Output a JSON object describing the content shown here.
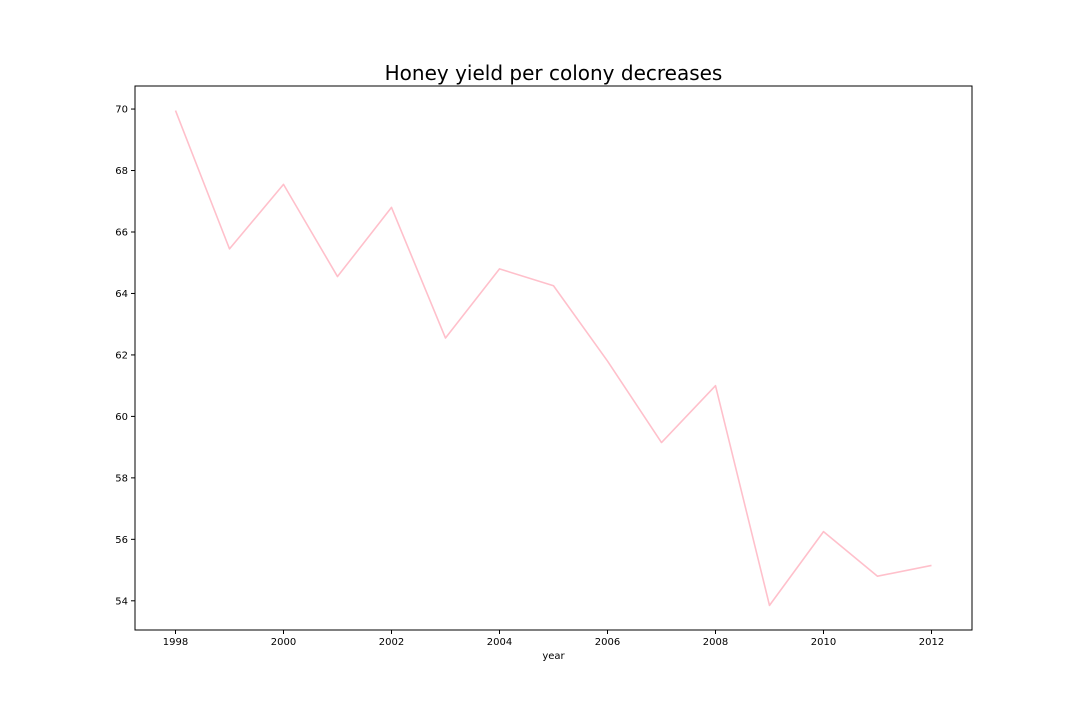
{
  "chart_data": {
    "type": "line",
    "title": "Honey yield per colony decreases",
    "xlabel": "year",
    "ylabel": "",
    "x": [
      1998,
      1999,
      2000,
      2001,
      2002,
      2003,
      2004,
      2005,
      2006,
      2007,
      2008,
      2009,
      2010,
      2011,
      2012
    ],
    "series": [
      {
        "values": [
          69.95,
          65.45,
          67.55,
          64.55,
          66.8,
          62.55,
          64.8,
          64.25,
          61.8,
          59.15,
          61.0,
          53.85,
          56.25,
          54.8,
          55.15
        ],
        "color": "#ffc0cb"
      }
    ],
    "xlim": [
      1997.25,
      2012.75
    ],
    "ylim": [
      53.05,
      70.75
    ],
    "xticks": [
      "1998",
      "2000",
      "2002",
      "2004",
      "2006",
      "2008",
      "2010",
      "2012"
    ],
    "yticks": [
      "54",
      "56",
      "58",
      "60",
      "62",
      "64",
      "66",
      "68",
      "70"
    ],
    "grid": false,
    "legend": "none"
  }
}
